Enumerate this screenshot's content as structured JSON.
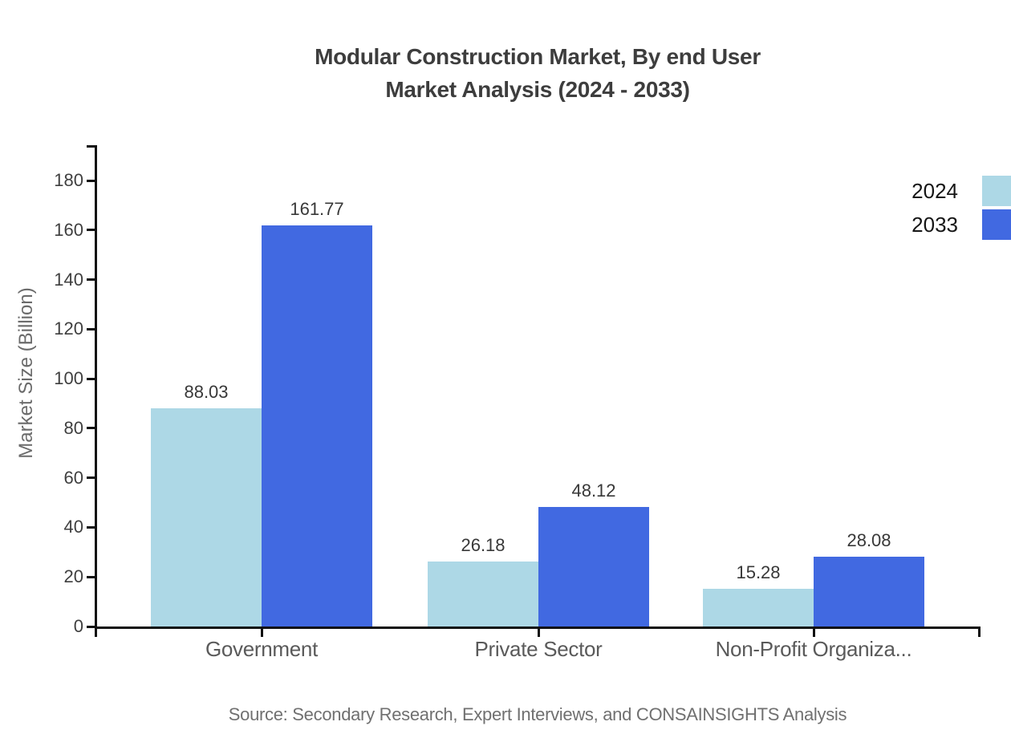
{
  "title": {
    "line1": "Modular Construction Market, By end User",
    "line2": "Market Analysis (2024 - 2033)"
  },
  "source": "Source: Secondary Research, Expert Interviews, and CONSAINSIGHTS Analysis",
  "chart_data": {
    "type": "bar",
    "title": "Modular Construction Market, By end User Market Analysis (2024 - 2033)",
    "categories": [
      "Government",
      "Private Sector",
      "Non-Profit Organiza..."
    ],
    "series": [
      {
        "name": "2024",
        "color": "#ADD8E6",
        "values": [
          88.03,
          26.18,
          15.28
        ]
      },
      {
        "name": "2033",
        "color": "#4169E1",
        "values": [
          161.77,
          48.12,
          28.08
        ]
      }
    ],
    "xlabel": "",
    "ylabel": "Market Size (Billion)",
    "ylim": [
      0,
      194
    ],
    "yticks": [
      0,
      20,
      40,
      60,
      80,
      100,
      120,
      140,
      160,
      180
    ],
    "grid": false,
    "value_labels": true,
    "value_label_decimals": 2,
    "legend_position": "top-right",
    "axis_color": "#111111"
  }
}
